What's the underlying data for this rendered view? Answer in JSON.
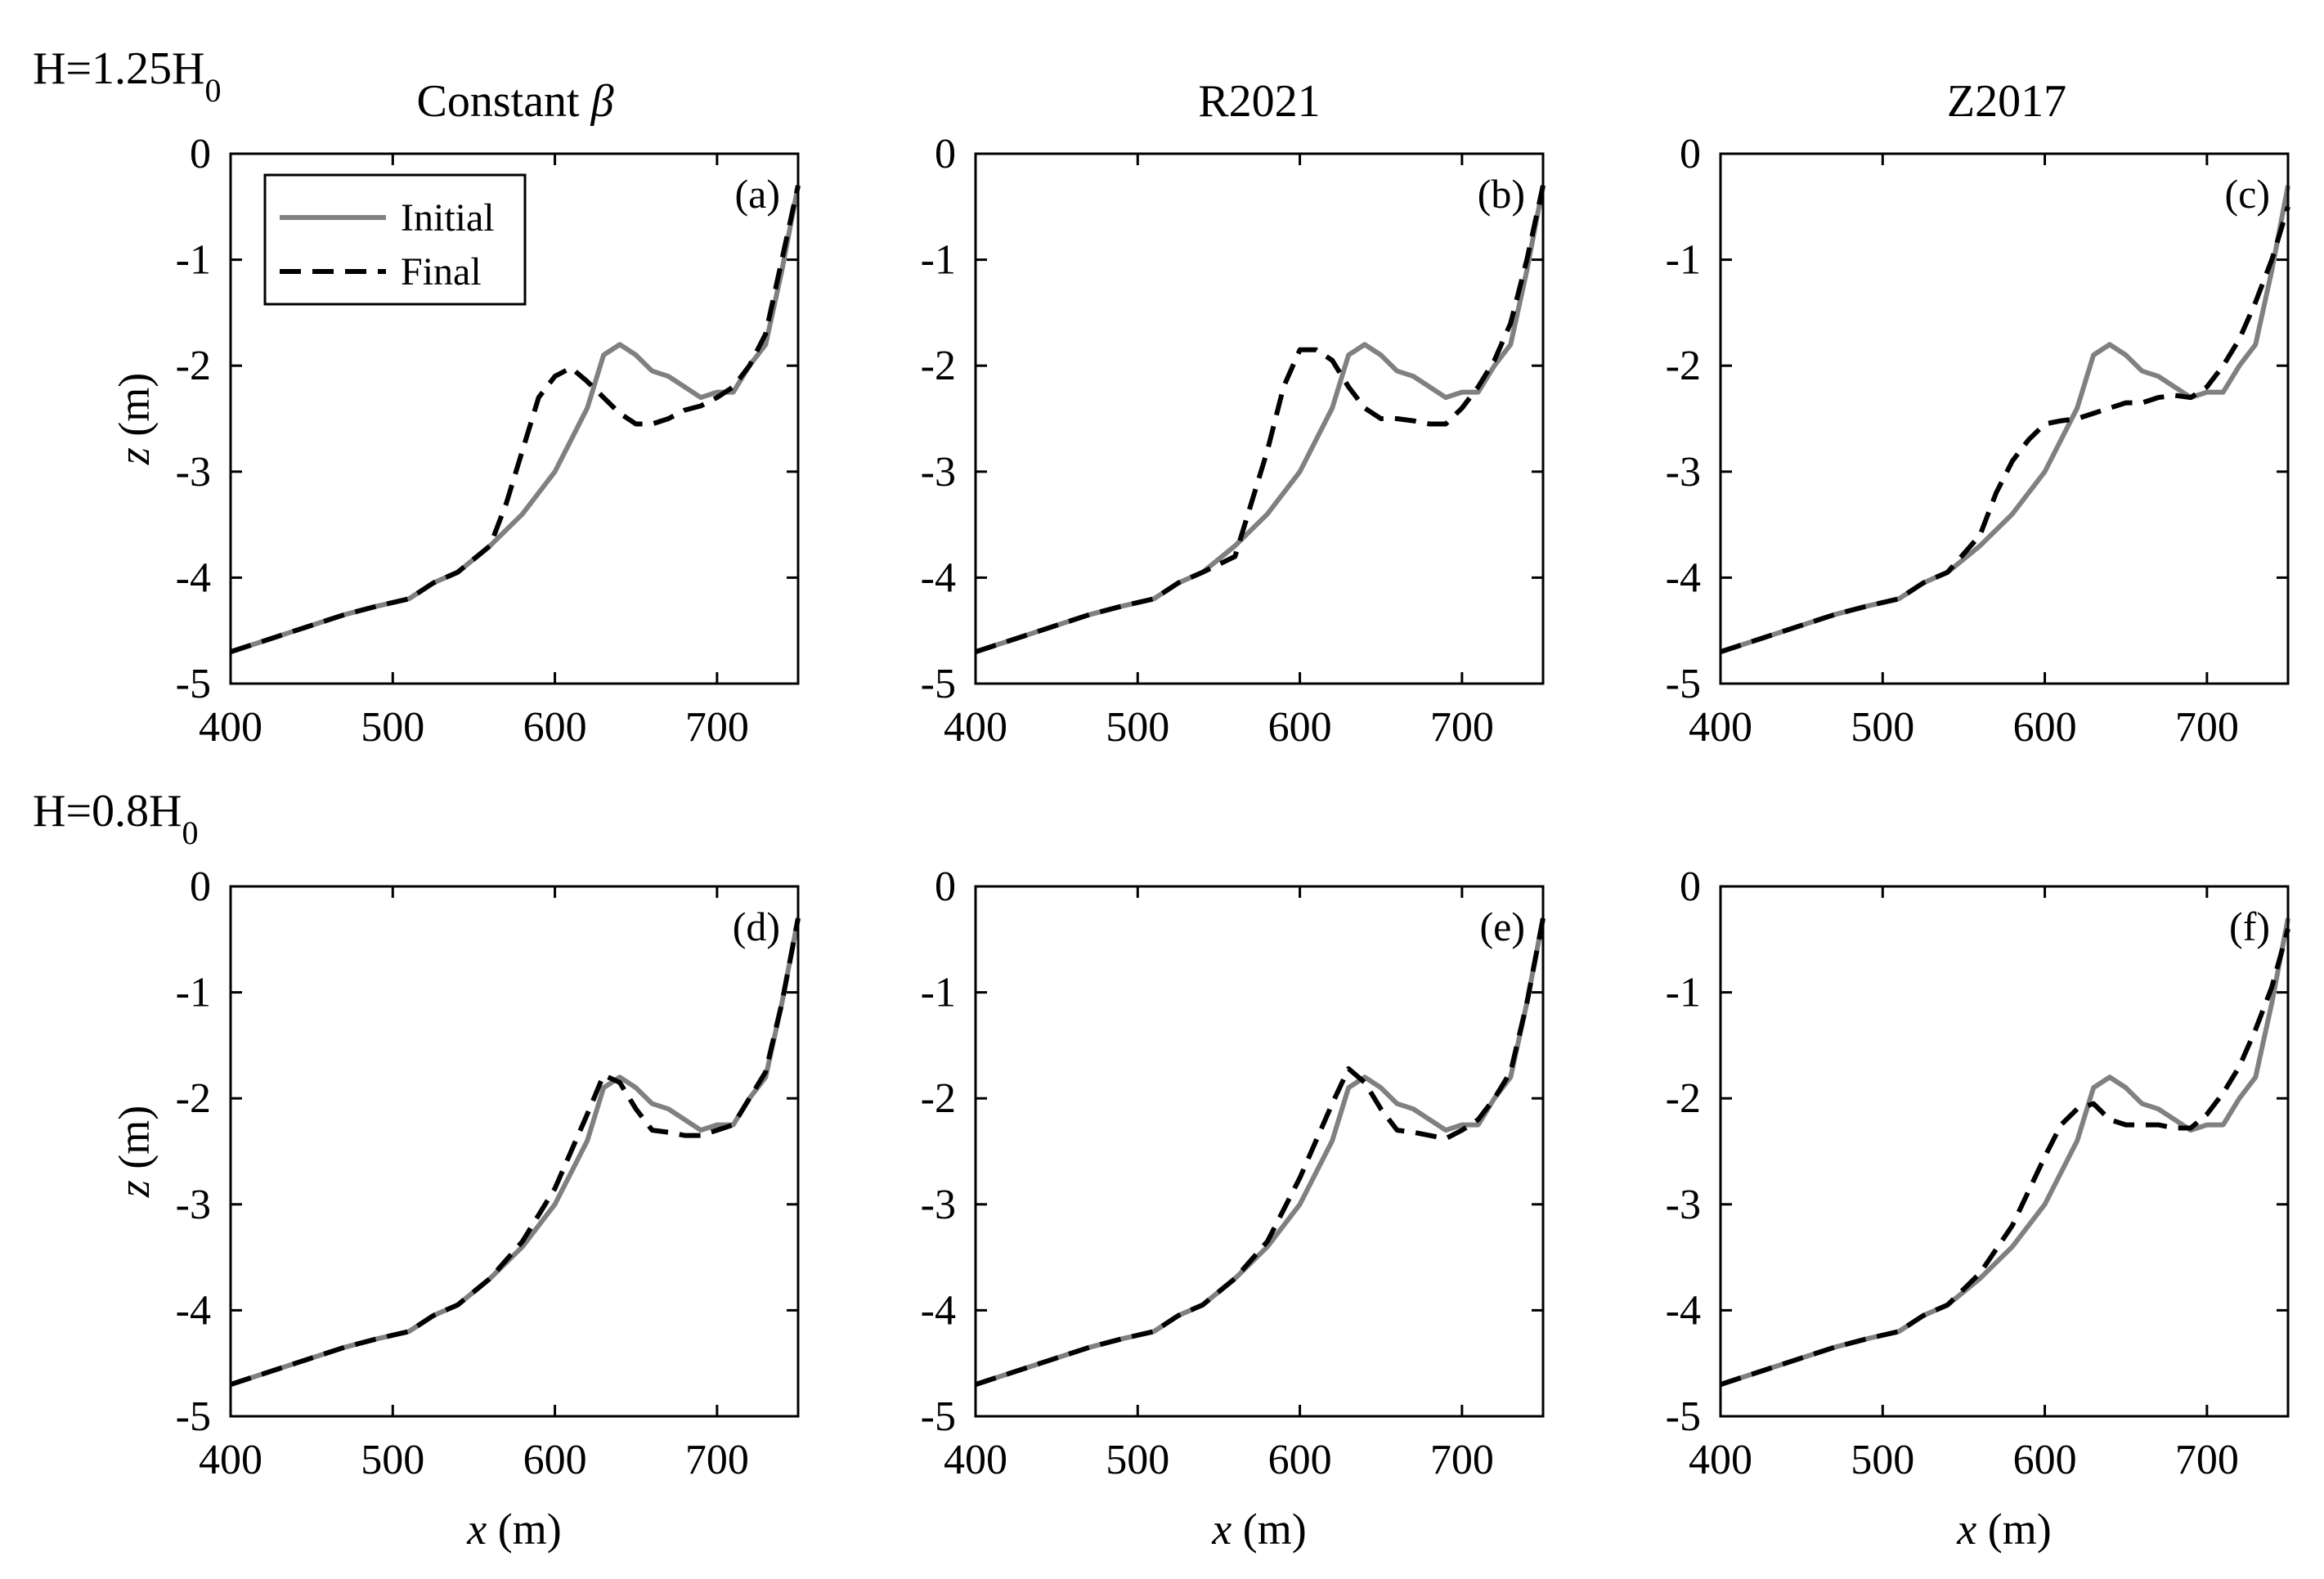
{
  "figure": {
    "row_titles": [
      "H=1.25H",
      "H=0.8H"
    ],
    "row_title_sub": "0",
    "column_titles": [
      "Constant",
      "R2021",
      "Z2017"
    ],
    "column_title_symbol": "β",
    "legend": {
      "initial": "Initial",
      "final": "Final"
    },
    "colors": {
      "initial": "#808080",
      "final": "#000000",
      "axis": "#000000",
      "background": "#ffffff"
    }
  },
  "chart_data": [
    {
      "type": "line",
      "panel": "(a)",
      "row": 0,
      "col": 0,
      "title": "",
      "xlabel": "x (m)",
      "ylabel": "z (m)",
      "xlim": [
        400,
        750
      ],
      "ylim": [
        -5,
        0
      ],
      "xticks": [
        400,
        500,
        600,
        700
      ],
      "yticks": [
        0,
        -1,
        -2,
        -3,
        -4,
        -5
      ],
      "legend": true,
      "legend_position": "top-left",
      "series": [
        {
          "name": "Initial",
          "style": "solid",
          "x": [
            400,
            440,
            470,
            490,
            510,
            525,
            540,
            560,
            580,
            600,
            620,
            630,
            640,
            650,
            660,
            670,
            680,
            690,
            700,
            710,
            720,
            730,
            740,
            750
          ],
          "y": [
            -4.7,
            -4.5,
            -4.35,
            -4.27,
            -4.2,
            -4.05,
            -3.95,
            -3.7,
            -3.4,
            -3.0,
            -2.4,
            -1.9,
            -1.8,
            -1.9,
            -2.05,
            -2.1,
            -2.2,
            -2.3,
            -2.25,
            -2.25,
            -2.0,
            -1.8,
            -1.1,
            -0.3
          ]
        },
        {
          "name": "Final",
          "style": "dashed",
          "x": [
            400,
            440,
            470,
            490,
            510,
            525,
            540,
            560,
            570,
            580,
            590,
            600,
            610,
            620,
            630,
            640,
            650,
            660,
            670,
            680,
            690,
            700,
            710,
            720,
            730,
            740,
            750
          ],
          "y": [
            -4.7,
            -4.5,
            -4.35,
            -4.27,
            -4.2,
            -4.05,
            -3.95,
            -3.7,
            -3.3,
            -2.8,
            -2.3,
            -2.1,
            -2.02,
            -2.15,
            -2.3,
            -2.45,
            -2.55,
            -2.55,
            -2.5,
            -2.42,
            -2.38,
            -2.3,
            -2.2,
            -2.0,
            -1.7,
            -1.0,
            -0.3
          ]
        }
      ]
    },
    {
      "type": "line",
      "panel": "(b)",
      "row": 0,
      "col": 1,
      "title": "",
      "xlabel": "x (m)",
      "ylabel": "z (m)",
      "xlim": [
        400,
        750
      ],
      "ylim": [
        -5,
        0
      ],
      "xticks": [
        400,
        500,
        600,
        700
      ],
      "yticks": [
        0,
        -1,
        -2,
        -3,
        -4,
        -5
      ],
      "legend": false,
      "series": [
        {
          "name": "Initial",
          "style": "solid",
          "x": [
            400,
            440,
            470,
            490,
            510,
            525,
            540,
            560,
            580,
            600,
            620,
            630,
            640,
            650,
            660,
            670,
            680,
            690,
            700,
            710,
            720,
            730,
            740,
            750
          ],
          "y": [
            -4.7,
            -4.5,
            -4.35,
            -4.27,
            -4.2,
            -4.05,
            -3.95,
            -3.7,
            -3.4,
            -3.0,
            -2.4,
            -1.9,
            -1.8,
            -1.9,
            -2.05,
            -2.1,
            -2.2,
            -2.3,
            -2.25,
            -2.25,
            -2.0,
            -1.8,
            -1.1,
            -0.3
          ]
        },
        {
          "name": "Final",
          "style": "dashed",
          "x": [
            400,
            440,
            470,
            490,
            510,
            525,
            540,
            560,
            570,
            580,
            590,
            600,
            610,
            620,
            630,
            640,
            650,
            660,
            670,
            680,
            690,
            700,
            710,
            720,
            730,
            740,
            750
          ],
          "y": [
            -4.7,
            -4.5,
            -4.35,
            -4.27,
            -4.2,
            -4.05,
            -3.95,
            -3.8,
            -3.3,
            -2.8,
            -2.2,
            -1.85,
            -1.85,
            -1.95,
            -2.2,
            -2.4,
            -2.5,
            -2.5,
            -2.52,
            -2.55,
            -2.55,
            -2.4,
            -2.2,
            -1.95,
            -1.6,
            -1.0,
            -0.3
          ]
        }
      ]
    },
    {
      "type": "line",
      "panel": "(c)",
      "row": 0,
      "col": 2,
      "title": "",
      "xlabel": "x (m)",
      "ylabel": "z (m)",
      "xlim": [
        400,
        750
      ],
      "ylim": [
        -5,
        0
      ],
      "xticks": [
        400,
        500,
        600,
        700
      ],
      "yticks": [
        0,
        -1,
        -2,
        -3,
        -4,
        -5
      ],
      "legend": false,
      "series": [
        {
          "name": "Initial",
          "style": "solid",
          "x": [
            400,
            440,
            470,
            490,
            510,
            525,
            540,
            560,
            580,
            600,
            620,
            630,
            640,
            650,
            660,
            670,
            680,
            690,
            700,
            710,
            720,
            730,
            740,
            750
          ],
          "y": [
            -4.7,
            -4.5,
            -4.35,
            -4.27,
            -4.2,
            -4.05,
            -3.95,
            -3.7,
            -3.4,
            -3.0,
            -2.4,
            -1.9,
            -1.8,
            -1.9,
            -2.05,
            -2.1,
            -2.2,
            -2.3,
            -2.25,
            -2.25,
            -2.0,
            -1.8,
            -1.1,
            -0.3
          ]
        },
        {
          "name": "Final",
          "style": "dashed",
          "x": [
            400,
            440,
            470,
            490,
            510,
            525,
            540,
            560,
            570,
            580,
            590,
            600,
            610,
            620,
            630,
            640,
            650,
            660,
            670,
            680,
            690,
            700,
            710,
            720,
            730,
            740,
            750
          ],
          "y": [
            -4.7,
            -4.5,
            -4.35,
            -4.27,
            -4.2,
            -4.05,
            -3.95,
            -3.6,
            -3.2,
            -2.9,
            -2.7,
            -2.55,
            -2.52,
            -2.5,
            -2.45,
            -2.4,
            -2.35,
            -2.35,
            -2.3,
            -2.28,
            -2.3,
            -2.2,
            -2.0,
            -1.75,
            -1.4,
            -1.0,
            -0.5
          ]
        }
      ]
    },
    {
      "type": "line",
      "panel": "(d)",
      "row": 1,
      "col": 0,
      "title": "",
      "xlabel": "x (m)",
      "ylabel": "z (m)",
      "xlim": [
        400,
        750
      ],
      "ylim": [
        -5,
        0
      ],
      "xticks": [
        400,
        500,
        600,
        700
      ],
      "yticks": [
        0,
        -1,
        -2,
        -3,
        -4,
        -5
      ],
      "legend": false,
      "series": [
        {
          "name": "Initial",
          "style": "solid",
          "x": [
            400,
            440,
            470,
            490,
            510,
            525,
            540,
            560,
            580,
            600,
            620,
            630,
            640,
            650,
            660,
            670,
            680,
            690,
            700,
            710,
            720,
            730,
            740,
            750
          ],
          "y": [
            -4.7,
            -4.5,
            -4.35,
            -4.27,
            -4.2,
            -4.05,
            -3.95,
            -3.7,
            -3.4,
            -3.0,
            -2.4,
            -1.9,
            -1.8,
            -1.9,
            -2.05,
            -2.1,
            -2.2,
            -2.3,
            -2.25,
            -2.25,
            -2.0,
            -1.8,
            -1.1,
            -0.3
          ]
        },
        {
          "name": "Final",
          "style": "dashed",
          "x": [
            400,
            440,
            470,
            490,
            510,
            525,
            540,
            560,
            580,
            600,
            620,
            630,
            640,
            650,
            660,
            670,
            680,
            690,
            700,
            710,
            720,
            730,
            740,
            750
          ],
          "y": [
            -4.7,
            -4.5,
            -4.35,
            -4.27,
            -4.2,
            -4.05,
            -3.95,
            -3.7,
            -3.35,
            -2.85,
            -2.15,
            -1.78,
            -1.85,
            -2.1,
            -2.3,
            -2.32,
            -2.35,
            -2.35,
            -2.3,
            -2.25,
            -2.0,
            -1.75,
            -1.1,
            -0.3
          ]
        }
      ]
    },
    {
      "type": "line",
      "panel": "(e)",
      "row": 1,
      "col": 1,
      "title": "",
      "xlabel": "x (m)",
      "ylabel": "z (m)",
      "xlim": [
        400,
        750
      ],
      "ylim": [
        -5,
        0
      ],
      "xticks": [
        400,
        500,
        600,
        700
      ],
      "yticks": [
        0,
        -1,
        -2,
        -3,
        -4,
        -5
      ],
      "legend": false,
      "series": [
        {
          "name": "Initial",
          "style": "solid",
          "x": [
            400,
            440,
            470,
            490,
            510,
            525,
            540,
            560,
            580,
            600,
            620,
            630,
            640,
            650,
            660,
            670,
            680,
            690,
            700,
            710,
            720,
            730,
            740,
            750
          ],
          "y": [
            -4.7,
            -4.5,
            -4.35,
            -4.27,
            -4.2,
            -4.05,
            -3.95,
            -3.7,
            -3.4,
            -3.0,
            -2.4,
            -1.9,
            -1.8,
            -1.9,
            -2.05,
            -2.1,
            -2.2,
            -2.3,
            -2.25,
            -2.25,
            -2.0,
            -1.8,
            -1.1,
            -0.3
          ]
        },
        {
          "name": "Final",
          "style": "dashed",
          "x": [
            400,
            440,
            470,
            490,
            510,
            525,
            540,
            560,
            580,
            600,
            620,
            630,
            640,
            650,
            660,
            670,
            680,
            690,
            700,
            710,
            720,
            730,
            740,
            750
          ],
          "y": [
            -4.7,
            -4.5,
            -4.35,
            -4.27,
            -4.2,
            -4.05,
            -3.95,
            -3.7,
            -3.35,
            -2.75,
            -2.05,
            -1.72,
            -1.85,
            -2.1,
            -2.3,
            -2.32,
            -2.35,
            -2.38,
            -2.3,
            -2.2,
            -2.0,
            -1.75,
            -1.1,
            -0.3
          ]
        }
      ]
    },
    {
      "type": "line",
      "panel": "(f)",
      "row": 1,
      "col": 2,
      "title": "",
      "xlabel": "x (m)",
      "ylabel": "z (m)",
      "xlim": [
        400,
        750
      ],
      "ylim": [
        -5,
        0
      ],
      "xticks": [
        400,
        500,
        600,
        700
      ],
      "yticks": [
        0,
        -1,
        -2,
        -3,
        -4,
        -5
      ],
      "legend": false,
      "series": [
        {
          "name": "Initial",
          "style": "solid",
          "x": [
            400,
            440,
            470,
            490,
            510,
            525,
            540,
            560,
            580,
            600,
            620,
            630,
            640,
            650,
            660,
            670,
            680,
            690,
            700,
            710,
            720,
            730,
            740,
            750
          ],
          "y": [
            -4.7,
            -4.5,
            -4.35,
            -4.27,
            -4.2,
            -4.05,
            -3.95,
            -3.7,
            -3.4,
            -3.0,
            -2.4,
            -1.9,
            -1.8,
            -1.9,
            -2.05,
            -2.1,
            -2.2,
            -2.3,
            -2.25,
            -2.25,
            -2.0,
            -1.8,
            -1.1,
            -0.3
          ]
        },
        {
          "name": "Final",
          "style": "dashed",
          "x": [
            400,
            440,
            470,
            490,
            510,
            525,
            540,
            560,
            580,
            600,
            610,
            620,
            630,
            640,
            650,
            660,
            670,
            680,
            690,
            700,
            710,
            720,
            730,
            740,
            750
          ],
          "y": [
            -4.7,
            -4.5,
            -4.35,
            -4.27,
            -4.2,
            -4.05,
            -3.95,
            -3.65,
            -3.2,
            -2.55,
            -2.25,
            -2.1,
            -2.05,
            -2.2,
            -2.25,
            -2.25,
            -2.25,
            -2.28,
            -2.28,
            -2.15,
            -1.95,
            -1.7,
            -1.35,
            -0.95,
            -0.4
          ]
        }
      ]
    }
  ]
}
